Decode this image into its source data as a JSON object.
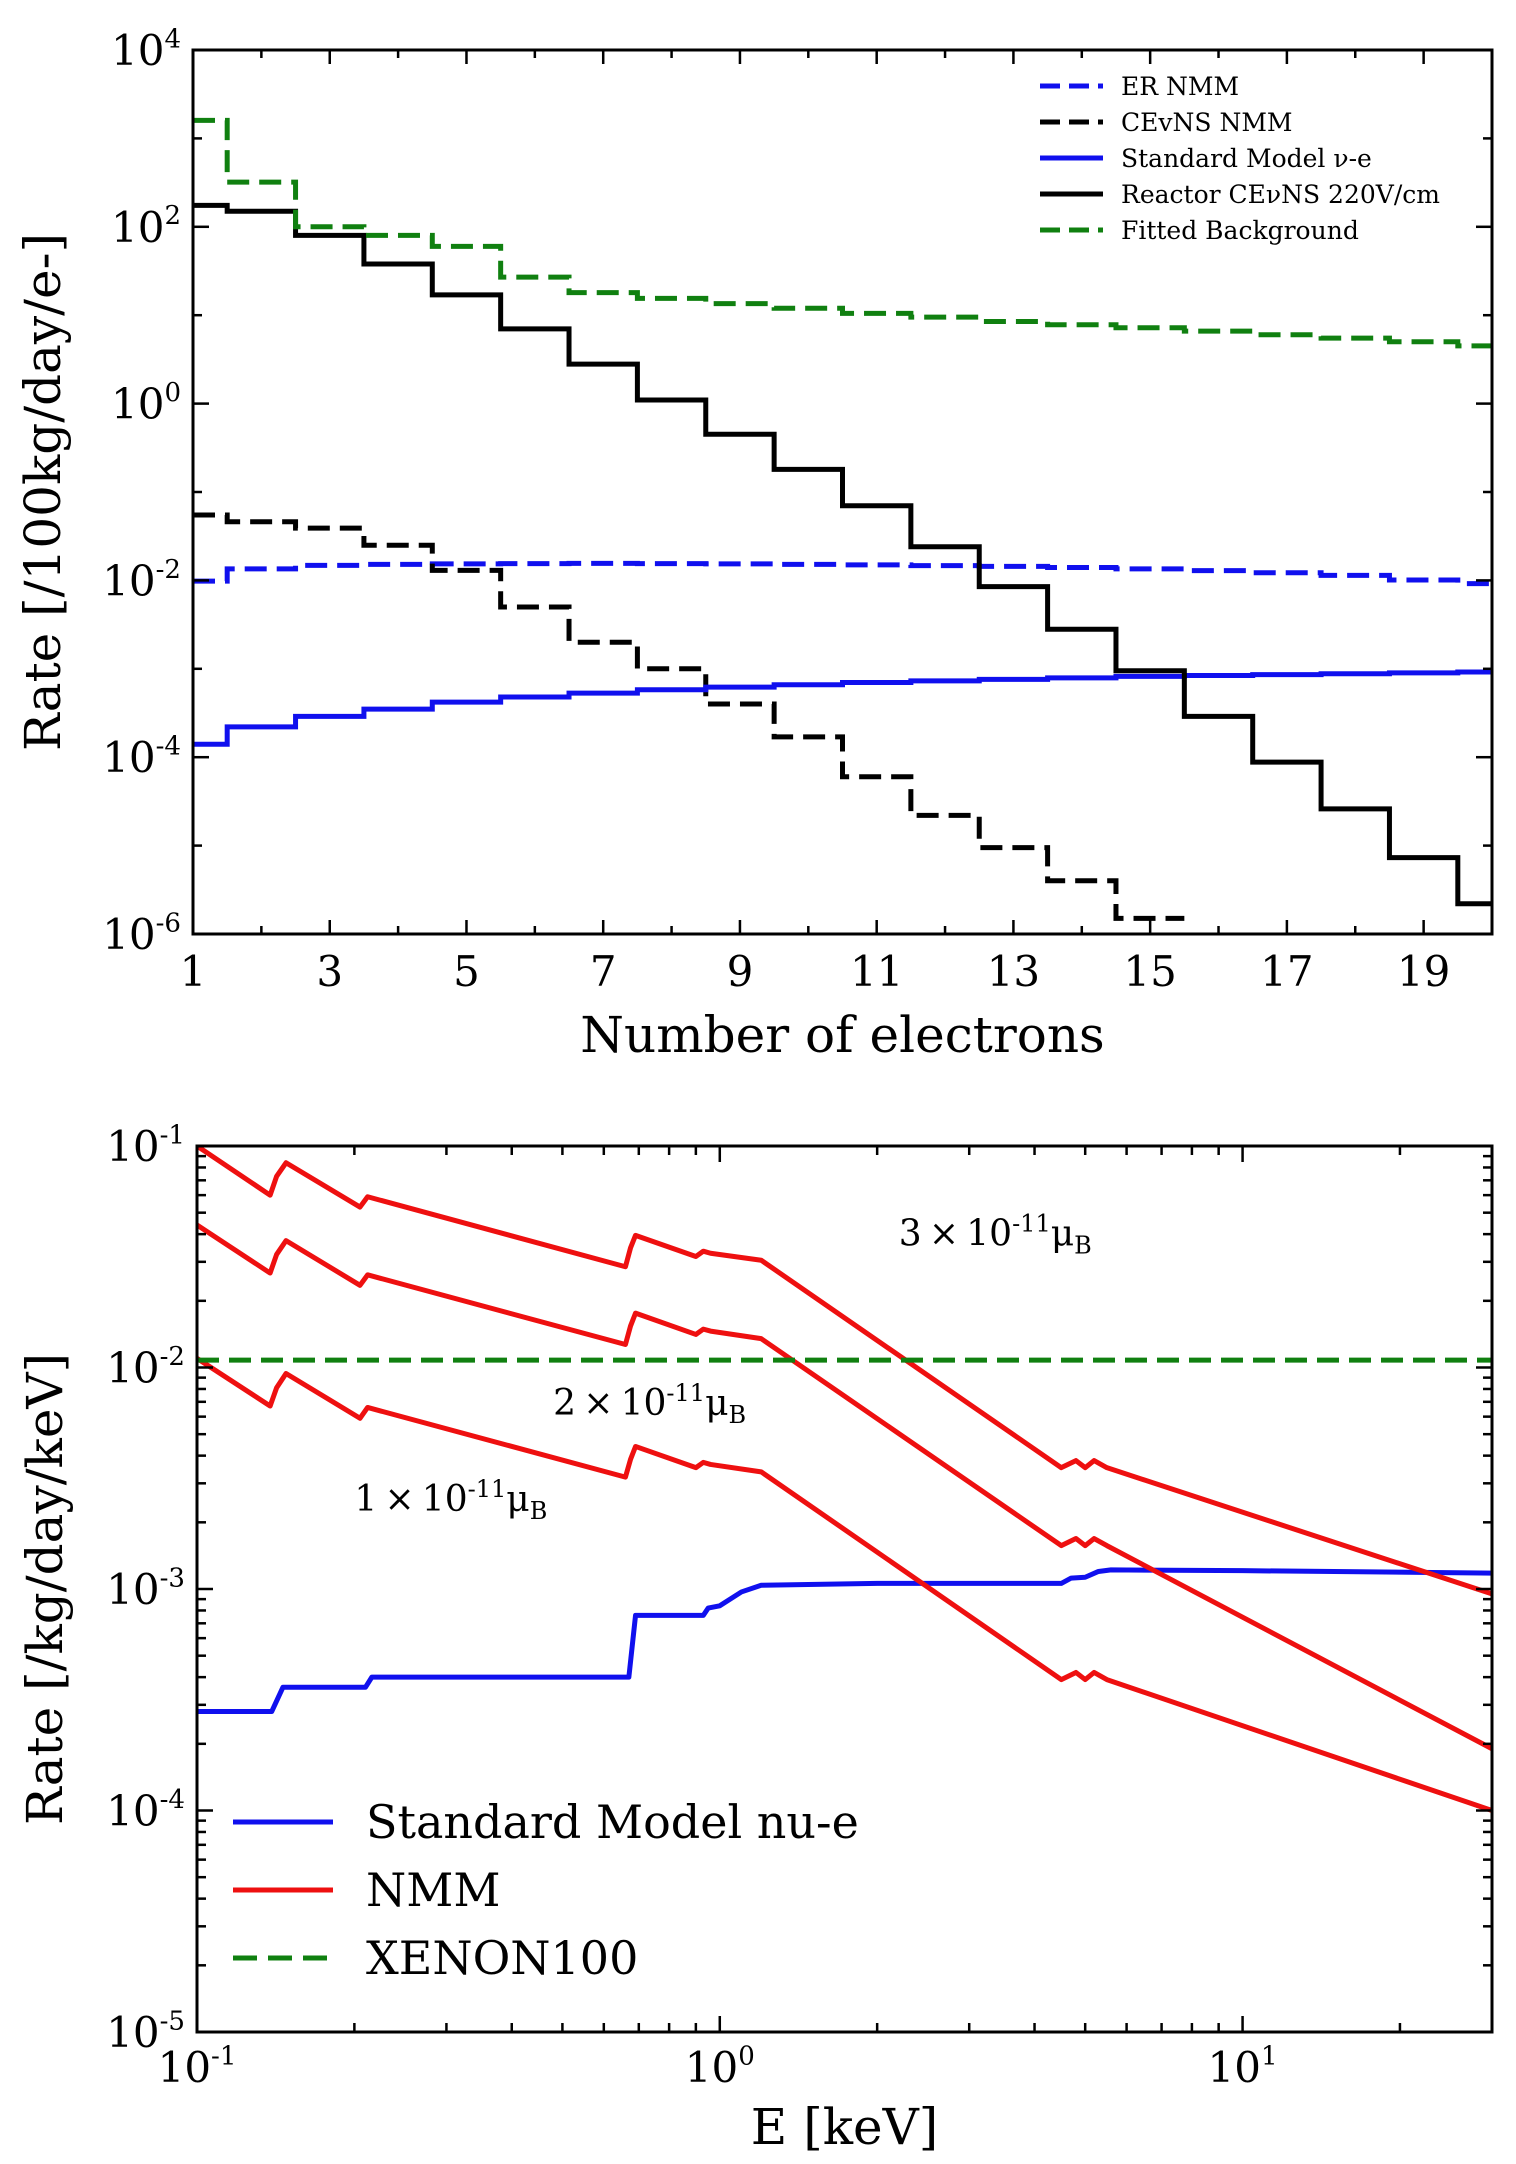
{
  "chart_data": [
    {
      "type": "line",
      "step": true,
      "xlabel": "Number of electrons",
      "ylabel": "Rate [/100kg/day/e-]",
      "xlim": [
        1,
        20
      ],
      "ylim": [
        1e-06,
        10000.0
      ],
      "yscale": "log",
      "xticks": [
        1,
        3,
        5,
        7,
        9,
        11,
        13,
        15,
        17,
        19
      ],
      "yticks": [
        {
          "value": 1e-06,
          "base": "10",
          "exp": "-6"
        },
        {
          "value": 0.0001,
          "base": "10",
          "exp": "-4"
        },
        {
          "value": 0.01,
          "base": "10",
          "exp": "-2"
        },
        {
          "value": 1,
          "base": "10",
          "exp": "0"
        },
        {
          "value": 100.0,
          "base": "10",
          "exp": "2"
        },
        {
          "value": 10000.0,
          "base": "10",
          "exp": "4"
        }
      ],
      "legend_position": "top-right",
      "series": [
        {
          "name": "ER NMM",
          "color": "#1010ee",
          "dash": true,
          "x": [
            1,
            2,
            3,
            4,
            5,
            6,
            7,
            8,
            9,
            10,
            11,
            12,
            13,
            14,
            15,
            16,
            17,
            18,
            19,
            20
          ],
          "values": [
            0.0098,
            0.0135,
            0.0148,
            0.0152,
            0.0154,
            0.0155,
            0.0156,
            0.0155,
            0.0154,
            0.0152,
            0.015,
            0.0147,
            0.0144,
            0.014,
            0.0135,
            0.0129,
            0.0122,
            0.0114,
            0.0101,
            0.0092
          ]
        },
        {
          "name": "CEvNS NMM",
          "color": "#000000",
          "dash": true,
          "x": [
            1,
            2,
            3,
            4,
            5,
            6,
            7,
            8,
            9,
            10,
            11,
            12,
            13,
            14,
            15
          ],
          "values": [
            0.055,
            0.046,
            0.039,
            0.025,
            0.013,
            0.005,
            0.002,
            0.001,
            0.0004,
            0.00017,
            6e-05,
            2.2e-05,
            9.5e-06,
            4e-06,
            1.5e-06
          ]
        },
        {
          "name": "Standard Model ν-e",
          "color": "#1010ee",
          "dash": false,
          "x": [
            1,
            2,
            3,
            4,
            5,
            6,
            7,
            8,
            9,
            10,
            11,
            12,
            13,
            14,
            15,
            16,
            17,
            18,
            19,
            20
          ],
          "values": [
            0.00014,
            0.00022,
            0.00029,
            0.00035,
            0.00042,
            0.00048,
            0.00053,
            0.00058,
            0.00062,
            0.00066,
            0.0007,
            0.00073,
            0.00076,
            0.00079,
            0.00082,
            0.00084,
            0.00086,
            0.00088,
            0.0009,
            0.00092
          ]
        },
        {
          "name": "Reactor CEνNS 220V/cm",
          "color": "#000000",
          "dash": false,
          "x": [
            1,
            2,
            3,
            4,
            5,
            6,
            7,
            8,
            9,
            10,
            11,
            12,
            13,
            14,
            15,
            16,
            17,
            18,
            19,
            20
          ],
          "values": [
            175,
            150,
            80,
            38,
            17,
            7,
            2.8,
            1.1,
            0.45,
            0.18,
            0.07,
            0.024,
            0.0085,
            0.0028,
            0.00095,
            0.00029,
            8.8e-05,
            2.6e-05,
            7.3e-06,
            2.2e-06
          ]
        },
        {
          "name": "Fitted Background",
          "color": "#108010",
          "dash": true,
          "x": [
            1,
            2,
            3,
            4,
            5,
            6,
            7,
            8,
            9,
            10,
            11,
            12,
            13,
            14,
            15,
            16,
            17,
            18,
            19,
            20
          ],
          "values": [
            1600,
            320,
            100,
            80,
            60,
            27,
            18,
            15.5,
            13.5,
            12,
            10.5,
            9.5,
            8.5,
            7.8,
            7.2,
            6.6,
            6.0,
            5.5,
            5.0,
            4.5
          ]
        }
      ]
    },
    {
      "type": "line",
      "xlabel": "E [keV]",
      "ylabel": "Rate [/kg/day/keV]",
      "xscale": "log",
      "yscale": "log",
      "xlim": [
        0.1,
        30
      ],
      "ylim": [
        1e-05,
        0.1
      ],
      "xticks": [
        {
          "value": 0.1,
          "base": "10",
          "exp": "-1"
        },
        {
          "value": 1,
          "base": "10",
          "exp": "0"
        },
        {
          "value": 10,
          "base": "10",
          "exp": "1"
        }
      ],
      "yticks": [
        {
          "value": 1e-05,
          "base": "10",
          "exp": "-5"
        },
        {
          "value": 0.0001,
          "base": "10",
          "exp": "-4"
        },
        {
          "value": 0.001,
          "base": "10",
          "exp": "-3"
        },
        {
          "value": 0.01,
          "base": "10",
          "exp": "-2"
        },
        {
          "value": 0.1,
          "base": "10",
          "exp": "-1"
        }
      ],
      "legend_position": "bottom-left",
      "annotations": [
        {
          "prefix": "3 × 10",
          "exp": "-11",
          "unit": "μ",
          "sub": "B",
          "x": 2.2,
          "y": 0.0355
        },
        {
          "prefix": "2 × 10",
          "exp": "-11",
          "unit": "μ",
          "sub": "B",
          "x": 0.48,
          "y": 0.0061
        },
        {
          "prefix": "1 × 10",
          "exp": "-11",
          "unit": "μ",
          "sub": "B",
          "x": 0.2,
          "y": 0.00225
        }
      ],
      "series": [
        {
          "name": "Standard Model nu-e",
          "color": "#1010ee",
          "dash": false,
          "points": [
            [
              0.1,
              0.00028
            ],
            [
              0.139,
              0.00028
            ],
            [
              0.146,
              0.00036
            ],
            [
              0.21,
              0.00036
            ],
            [
              0.216,
              0.0004
            ],
            [
              0.67,
              0.0004
            ],
            [
              0.69,
              0.00076
            ],
            [
              0.93,
              0.00076
            ],
            [
              0.95,
              0.00082
            ],
            [
              1.0,
              0.00084
            ],
            [
              1.1,
              0.00097
            ],
            [
              1.2,
              0.00104
            ],
            [
              2.0,
              0.00106
            ],
            [
              4.5,
              0.00106
            ],
            [
              4.7,
              0.00112
            ],
            [
              5.0,
              0.00113
            ],
            [
              5.3,
              0.0012
            ],
            [
              5.6,
              0.00122
            ],
            [
              10,
              0.00121
            ],
            [
              30,
              0.00118
            ]
          ]
        },
        {
          "name": "NMM",
          "color": "#ee1010",
          "dash": false,
          "label": "3 × 10-11μB",
          "points": [
            [
              0.1,
              0.1
            ],
            [
              0.138,
              0.06
            ],
            [
              0.142,
              0.073
            ],
            [
              0.148,
              0.084
            ],
            [
              0.205,
              0.053
            ],
            [
              0.212,
              0.059
            ],
            [
              0.66,
              0.0285
            ],
            [
              0.675,
              0.0347
            ],
            [
              0.69,
              0.0395
            ],
            [
              0.9,
              0.0317
            ],
            [
              0.93,
              0.0335
            ],
            [
              0.96,
              0.0328
            ],
            [
              1.2,
              0.0305
            ],
            [
              4.5,
              0.00353
            ],
            [
              4.8,
              0.0038
            ],
            [
              5.0,
              0.00353
            ],
            [
              5.2,
              0.0038
            ],
            [
              5.5,
              0.00353
            ],
            [
              30,
              0.00095
            ]
          ]
        },
        {
          "name": "NMM",
          "color": "#ee1010",
          "dash": false,
          "label": "2 × 10-11μB",
          "points": [
            [
              0.1,
              0.044
            ],
            [
              0.138,
              0.0267
            ],
            [
              0.142,
              0.0324
            ],
            [
              0.148,
              0.0374
            ],
            [
              0.205,
              0.0235
            ],
            [
              0.212,
              0.0262
            ],
            [
              0.66,
              0.0127
            ],
            [
              0.675,
              0.0154
            ],
            [
              0.69,
              0.0176
            ],
            [
              0.9,
              0.0141
            ],
            [
              0.93,
              0.0149
            ],
            [
              0.96,
              0.0146
            ],
            [
              1.2,
              0.0135
            ],
            [
              4.5,
              0.00157
            ],
            [
              4.8,
              0.00169
            ],
            [
              5.0,
              0.00157
            ],
            [
              5.2,
              0.00169
            ],
            [
              5.5,
              0.00157
            ],
            [
              30,
              0.00019
            ]
          ]
        },
        {
          "name": "NMM",
          "color": "#ee1010",
          "dash": false,
          "label": "1 × 10-11μB",
          "points": [
            [
              0.1,
              0.011
            ],
            [
              0.138,
              0.0067
            ],
            [
              0.142,
              0.0081
            ],
            [
              0.148,
              0.0094
            ],
            [
              0.205,
              0.0059
            ],
            [
              0.212,
              0.0066
            ],
            [
              0.66,
              0.0032
            ],
            [
              0.675,
              0.00385
            ],
            [
              0.69,
              0.0044
            ],
            [
              0.9,
              0.00353
            ],
            [
              0.93,
              0.00373
            ],
            [
              0.96,
              0.00365
            ],
            [
              1.2,
              0.00338
            ],
            [
              4.5,
              0.00039
            ],
            [
              4.8,
              0.00042
            ],
            [
              5.0,
              0.00039
            ],
            [
              5.2,
              0.00042
            ],
            [
              5.5,
              0.00039
            ],
            [
              30,
              0.0001
            ]
          ]
        },
        {
          "name": "XENON100",
          "color": "#108010",
          "dash": true,
          "points": [
            [
              0.1,
              0.0108
            ],
            [
              30,
              0.0108
            ]
          ]
        }
      ]
    }
  ]
}
